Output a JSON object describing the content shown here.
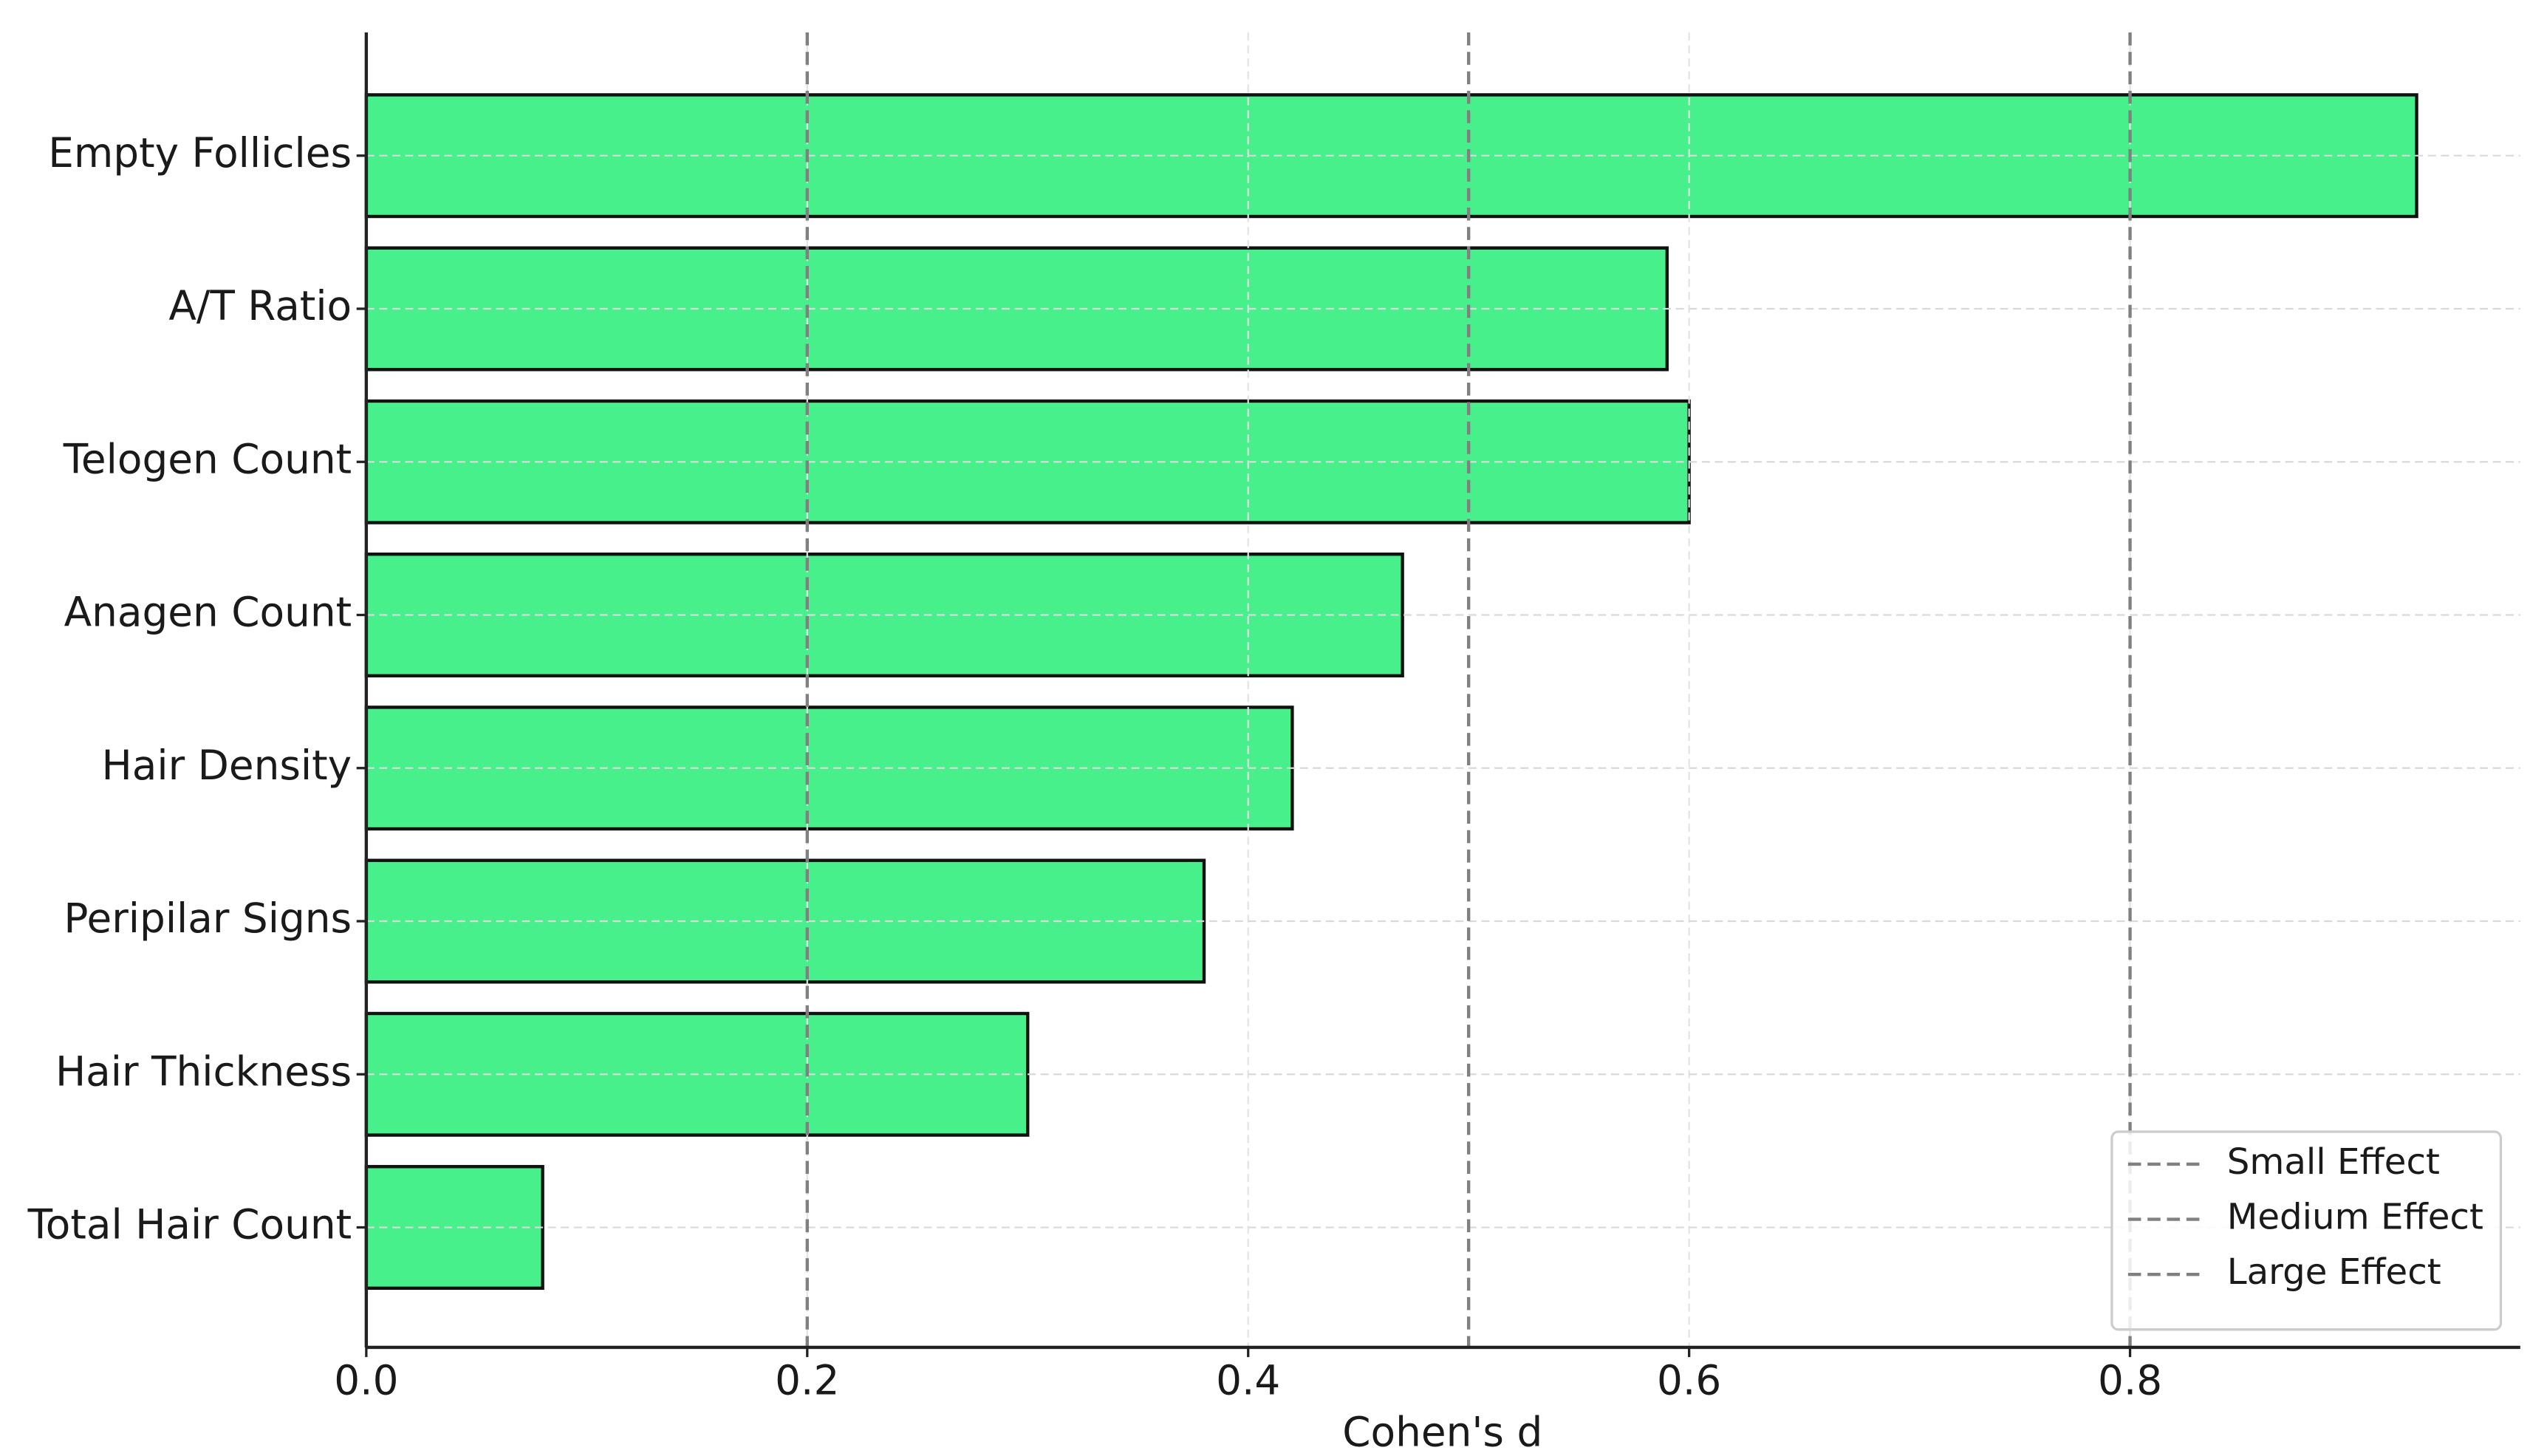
{
  "chart_data": {
    "type": "barh",
    "xlabel": "Cohen's d",
    "categories": [
      "Empty Follicles",
      "A/T Ratio",
      "Telogen Count",
      "Anagen Count",
      "Hair Density",
      "Peripilar Signs",
      "Hair Thickness",
      "Total Hair Count"
    ],
    "values": [
      0.93,
      0.59,
      0.6,
      0.47,
      0.42,
      0.38,
      0.3,
      0.08
    ],
    "color": "#47f08b",
    "xlim": [
      0,
      0.977
    ],
    "xticks": [
      {
        "value": 0,
        "label": "0.0"
      },
      0.2,
      0.4,
      0.6,
      0.8
    ],
    "grid": true,
    "reference_lines": [
      {
        "name": "Small Effect",
        "value": 0.2,
        "color": "#808080"
      },
      {
        "name": "Medium Effect",
        "value": 0.5,
        "color": "#808080"
      },
      {
        "name": "Large Effect",
        "value": 0.8,
        "color": "#808080"
      }
    ],
    "legend": "lower right"
  }
}
